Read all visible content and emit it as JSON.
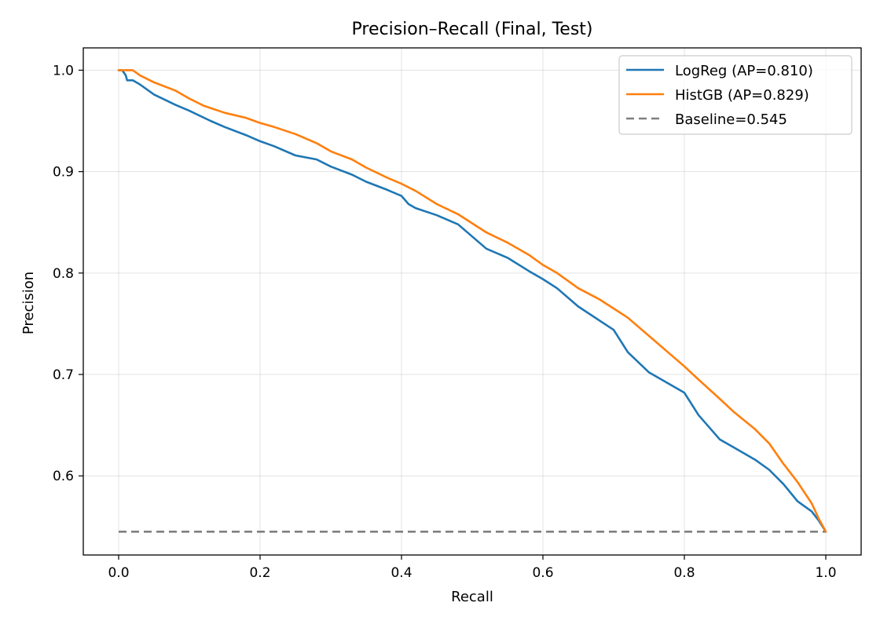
{
  "chart_data": {
    "type": "line",
    "title": "Precision–Recall (Final, Test)",
    "xlabel": "Recall",
    "ylabel": "Precision",
    "xlim": [
      -0.05,
      1.05
    ],
    "ylim": [
      0.522,
      1.022
    ],
    "x_ticks": [
      0.0,
      0.2,
      0.4,
      0.6,
      0.8,
      1.0
    ],
    "x_tick_labels": [
      "0.0",
      "0.2",
      "0.4",
      "0.6",
      "0.8",
      "1.0"
    ],
    "y_ticks": [
      0.6,
      0.7,
      0.8,
      0.9,
      1.0
    ],
    "y_tick_labels": [
      "0.6",
      "0.7",
      "0.8",
      "0.9",
      "1.0"
    ],
    "grid": true,
    "legend_position": "top-right",
    "series": [
      {
        "name": "LogReg (AP=0.810)",
        "color": "#1f77b4",
        "style": "solid",
        "x": [
          0.0,
          0.005,
          0.01,
          0.012,
          0.02,
          0.03,
          0.05,
          0.08,
          0.1,
          0.13,
          0.15,
          0.18,
          0.2,
          0.22,
          0.25,
          0.28,
          0.3,
          0.33,
          0.35,
          0.38,
          0.4,
          0.41,
          0.42,
          0.45,
          0.48,
          0.5,
          0.52,
          0.55,
          0.58,
          0.6,
          0.62,
          0.65,
          0.7,
          0.72,
          0.75,
          0.78,
          0.8,
          0.82,
          0.85,
          0.87,
          0.9,
          0.92,
          0.94,
          0.96,
          0.98,
          0.99,
          1.0
        ],
        "y": [
          1.0,
          1.0,
          0.995,
          0.99,
          0.99,
          0.986,
          0.976,
          0.966,
          0.96,
          0.95,
          0.944,
          0.936,
          0.93,
          0.925,
          0.916,
          0.912,
          0.905,
          0.897,
          0.89,
          0.882,
          0.876,
          0.868,
          0.864,
          0.857,
          0.848,
          0.836,
          0.824,
          0.815,
          0.802,
          0.794,
          0.785,
          0.767,
          0.744,
          0.722,
          0.702,
          0.69,
          0.682,
          0.66,
          0.636,
          0.628,
          0.616,
          0.606,
          0.592,
          0.575,
          0.565,
          0.556,
          0.545
        ]
      },
      {
        "name": "HistGB (AP=0.829)",
        "color": "#ff7f0e",
        "style": "solid",
        "x": [
          0.0,
          0.02,
          0.03,
          0.05,
          0.08,
          0.1,
          0.12,
          0.15,
          0.18,
          0.2,
          0.22,
          0.25,
          0.28,
          0.3,
          0.33,
          0.35,
          0.38,
          0.4,
          0.42,
          0.45,
          0.48,
          0.5,
          0.52,
          0.55,
          0.58,
          0.6,
          0.62,
          0.65,
          0.68,
          0.7,
          0.72,
          0.75,
          0.78,
          0.8,
          0.82,
          0.85,
          0.87,
          0.9,
          0.92,
          0.94,
          0.96,
          0.98,
          0.99,
          1.0
        ],
        "y": [
          1.0,
          1.0,
          0.995,
          0.988,
          0.98,
          0.972,
          0.965,
          0.958,
          0.953,
          0.948,
          0.944,
          0.937,
          0.928,
          0.92,
          0.912,
          0.904,
          0.894,
          0.888,
          0.881,
          0.868,
          0.858,
          0.849,
          0.84,
          0.83,
          0.818,
          0.808,
          0.8,
          0.785,
          0.774,
          0.765,
          0.756,
          0.738,
          0.72,
          0.708,
          0.695,
          0.676,
          0.663,
          0.646,
          0.632,
          0.612,
          0.594,
          0.573,
          0.558,
          0.545
        ]
      },
      {
        "name": "Baseline=0.545",
        "color": "#7f7f7f",
        "style": "dashed",
        "x": [
          0.0,
          1.0
        ],
        "y": [
          0.545,
          0.545
        ]
      }
    ]
  }
}
